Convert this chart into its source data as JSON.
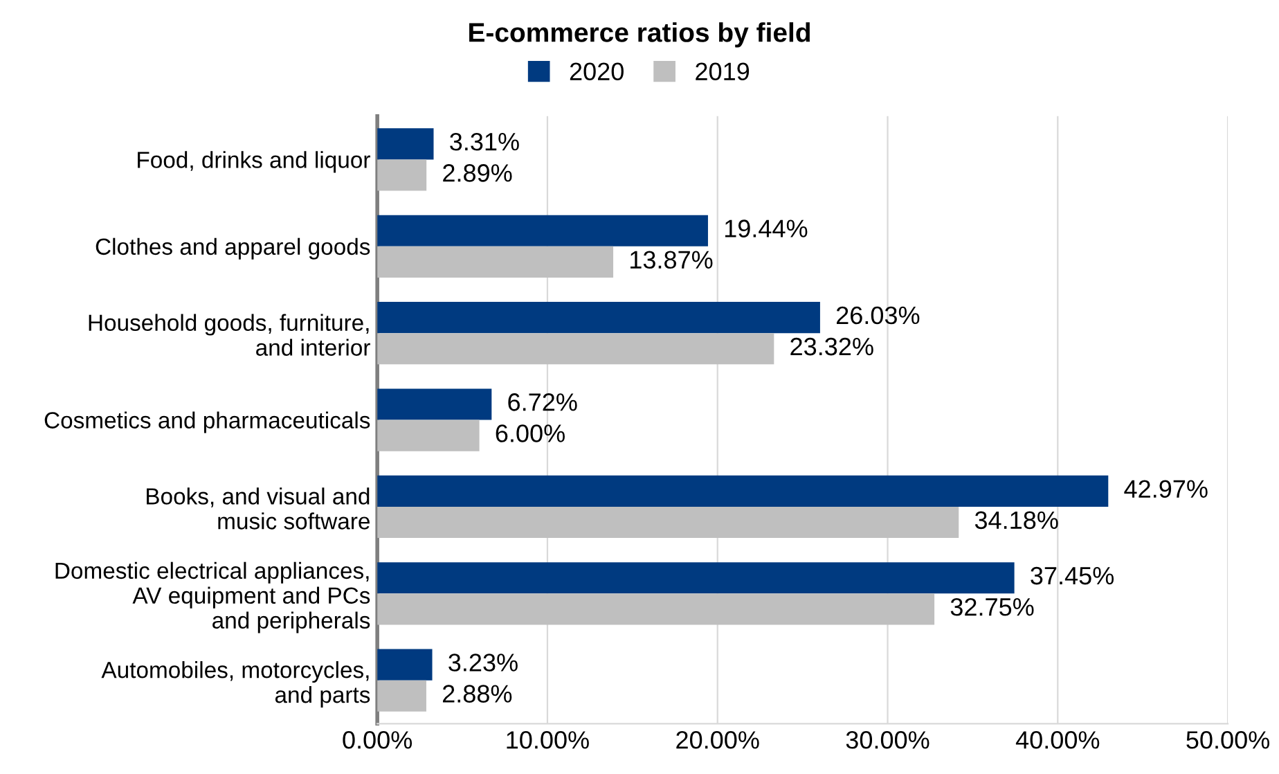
{
  "chart_data": {
    "type": "bar",
    "orientation": "horizontal",
    "title": "E-commerce ratios by field",
    "categories": [
      "Food, drinks and liquor",
      "Clothes and apparel goods",
      "Household goods, furniture,\nand interior",
      "Cosmetics and pharmaceuticals",
      "Books, and visual and\nmusic software",
      "Domestic electrical appliances,\nAV equipment and PCs\nand peripherals",
      "Automobiles, motorcycles,\nand parts"
    ],
    "series": [
      {
        "name": "2020",
        "color": "#003a80",
        "values": [
          3.31,
          19.44,
          26.03,
          6.72,
          42.97,
          37.45,
          3.23
        ],
        "value_labels": [
          "3.31%",
          "19.44%",
          "26.03%",
          "6.72%",
          "42.97%",
          "37.45%",
          "3.23%"
        ]
      },
      {
        "name": "2019",
        "color": "#bfbfbf",
        "values": [
          2.89,
          13.87,
          23.32,
          6.0,
          34.18,
          32.75,
          2.88
        ],
        "value_labels": [
          "2.89%",
          "13.87%",
          "23.32%",
          "6.00%",
          "34.18%",
          "32.75%",
          "2.88%"
        ]
      }
    ],
    "xlim": [
      0,
      50
    ],
    "xticks": [
      {
        "value": 0,
        "label": "0.00%"
      },
      {
        "value": 10,
        "label": "10.00%"
      },
      {
        "value": 20,
        "label": "20.00%"
      },
      {
        "value": 30,
        "label": "30.00%"
      },
      {
        "value": 40,
        "label": "40.00%"
      },
      {
        "value": 50,
        "label": "50.00%"
      }
    ],
    "grid": "x",
    "legend": "top"
  }
}
